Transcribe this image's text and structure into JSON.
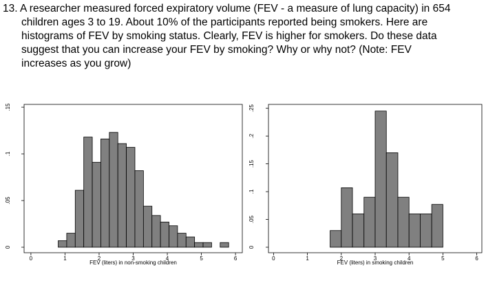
{
  "question": {
    "lines": [
      "13. A researcher measured forced expiratory volume (FEV - a measure of lung capacity) in 654",
      "children ages 3 to 19.  About 10% of the participants reported being smokers. Here are",
      "histograms of FEV by smoking status. Clearly, FEV  is higher for smokers. Do these data",
      "suggest that you can increase your FEV by smoking? Why or why not? (Note:  FEV",
      "increases as you grow)"
    ]
  },
  "chart_data": [
    {
      "type": "histogram",
      "x_label": "FEV (liters) in non-smoking children",
      "color": "#808080",
      "bins": [
        0.8,
        1.05,
        1.3,
        1.55,
        1.8,
        2.05,
        2.3,
        2.55,
        2.8,
        3.05,
        3.3,
        3.55,
        3.8,
        4.05,
        4.3,
        4.55,
        4.8,
        5.05,
        5.3,
        5.55,
        5.8
      ],
      "values": [
        0.007,
        0.015,
        0.061,
        0.118,
        0.091,
        0.116,
        0.123,
        0.111,
        0.107,
        0.082,
        0.044,
        0.034,
        0.027,
        0.023,
        0.015,
        0.011,
        0.005,
        0.005,
        0,
        0.005
      ],
      "xlim": [
        -0.2,
        6.2
      ],
      "xticks": [
        0,
        1,
        2,
        3,
        4,
        5,
        6
      ],
      "ylim": [
        0,
        0.153
      ],
      "yticks": [
        {
          "value": 0,
          "label": "0"
        },
        {
          "value": 0.05,
          "label": ".05"
        },
        {
          "value": 0.1,
          "label": ".1"
        },
        {
          "value": 0.15,
          "label": ".15"
        }
      ]
    },
    {
      "type": "histogram",
      "x_label": "FEV (liters) in smoking children",
      "color": "#808080",
      "bins": [
        1.67,
        2.0,
        2.33,
        2.67,
        3.0,
        3.33,
        3.67,
        4.0,
        4.33,
        4.67,
        5.0
      ],
      "values": [
        0.03,
        0.107,
        0.06,
        0.09,
        0.245,
        0.17,
        0.09,
        0.06,
        0.06,
        0.077
      ],
      "xlim": [
        -0.15,
        6.15
      ],
      "xticks": [
        0,
        1,
        2,
        3,
        4,
        5,
        6
      ],
      "ylim": [
        0,
        0.257
      ],
      "yticks": [
        {
          "value": 0,
          "label": "0"
        },
        {
          "value": 0.05,
          "label": ".05"
        },
        {
          "value": 0.1,
          "label": ".1"
        },
        {
          "value": 0.15,
          "label": ".15"
        },
        {
          "value": 0.2,
          "label": ".2"
        },
        {
          "value": 0.25,
          "label": ".25"
        }
      ]
    }
  ]
}
